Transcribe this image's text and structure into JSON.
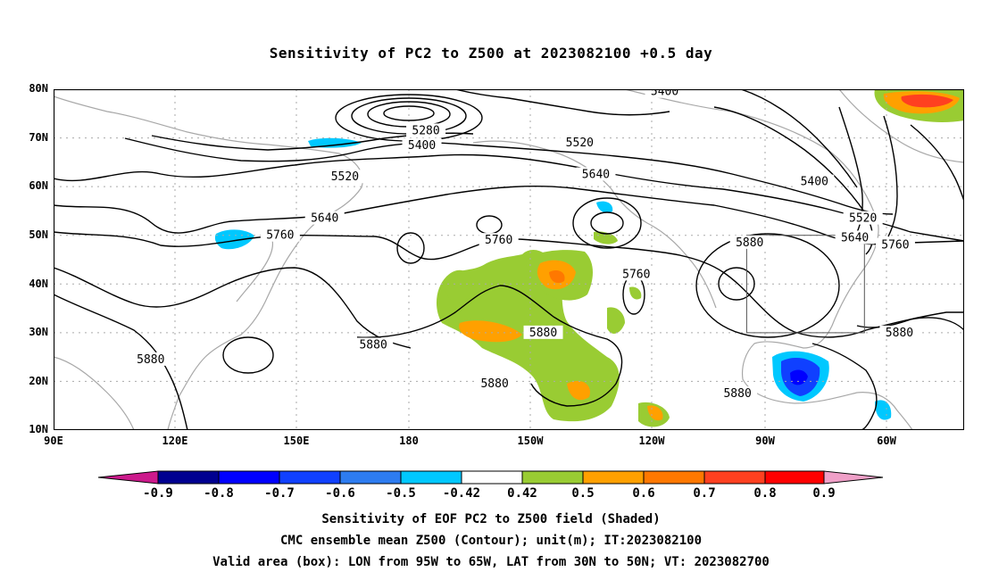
{
  "title": "Sensitivity of PC2 to Z500 at 2023082100 +0.5 day",
  "lat_labels": [
    "80N",
    "70N",
    "60N",
    "50N",
    "40N",
    "30N",
    "20N",
    "10N"
  ],
  "lon_labels": [
    "90E",
    "120E",
    "150E",
    "180",
    "150W",
    "120W",
    "90W",
    "60W"
  ],
  "contours": [
    {
      "label": "5400",
      "lon": -119,
      "lat": 79.5
    },
    {
      "label": "5280",
      "lon": -178,
      "lat": 71.5
    },
    {
      "label": "5400",
      "lon": -179,
      "lat": 68.5
    },
    {
      "label": "5520",
      "lon": -140,
      "lat": 69
    },
    {
      "label": "5520",
      "lon": 162,
      "lat": 62
    },
    {
      "label": "5640",
      "lon": -136,
      "lat": 62.5
    },
    {
      "label": "5400",
      "lon": -82,
      "lat": 61
    },
    {
      "label": "5520",
      "lon": -70,
      "lat": 53.5
    },
    {
      "label": "5640",
      "lon": 157,
      "lat": 53.5
    },
    {
      "label": "5640",
      "lon": -72,
      "lat": 49.5
    },
    {
      "label": "5760",
      "lon": -62,
      "lat": 48
    },
    {
      "label": "5760",
      "lon": 146,
      "lat": 50
    },
    {
      "label": "5760",
      "lon": -160,
      "lat": 49
    },
    {
      "label": "5880",
      "lon": -98,
      "lat": 48.5
    },
    {
      "label": "5760",
      "lon": -126,
      "lat": 42
    },
    {
      "label": "5880",
      "lon": -61,
      "lat": 30
    },
    {
      "label": "5880",
      "lon": -149,
      "lat": 30
    },
    {
      "label": "5880",
      "lon": 169,
      "lat": 27.5
    },
    {
      "label": "5880",
      "lon": 114,
      "lat": 24.5
    },
    {
      "label": "5880",
      "lon": -161,
      "lat": 19.5
    },
    {
      "label": "5880",
      "lon": -101,
      "lat": 17.5
    }
  ],
  "valid_box": {
    "lon_min": -95,
    "lon_max": -65,
    "lat_min": 30,
    "lat_max": 50
  },
  "colorbar": {
    "labels": [
      "-0.9",
      "-0.8",
      "-0.7",
      "-0.6",
      "-0.5",
      "-0.42",
      "0.42",
      "0.5",
      "0.6",
      "0.7",
      "0.8",
      "0.9"
    ],
    "colors": [
      "#000090",
      "#0000ff",
      "#1040ff",
      "#2d7cf0",
      "#00c8ff",
      "#ffffff",
      "#99cc33",
      "#ffa000",
      "#ff7800",
      "#ff4020",
      "#ff0000"
    ],
    "low_end": "#cc1a8c",
    "high_end": "#f0a0c8"
  },
  "captions": [
    "Sensitivity of EOF PC2 to Z500 field (Shaded)",
    "CMC ensemble mean Z500 (Contour); unit(m); IT:2023082100",
    "Valid area (box): LON from 95W to 65W, LAT from 30N to 50N; VT: 2023082700"
  ]
}
